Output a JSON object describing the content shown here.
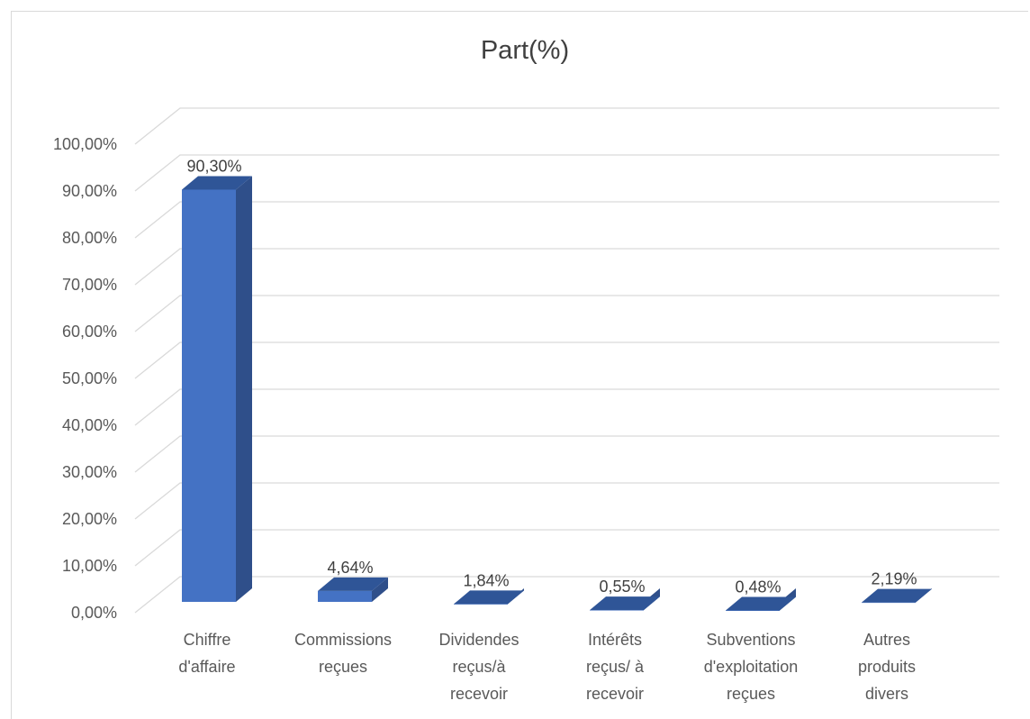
{
  "chart_data": {
    "type": "bar",
    "title": "Part(%)",
    "categories": [
      [
        "Chiffre",
        "d'affaire"
      ],
      [
        "Commissions",
        "reçues"
      ],
      [
        "Dividendes",
        "reçus/à",
        "recevoir"
      ],
      [
        "Intérêts",
        "reçus/ à",
        "recevoir"
      ],
      [
        "Subventions",
        "d'exploitation",
        "reçues"
      ],
      [
        "Autres",
        "produits",
        "divers"
      ]
    ],
    "values": [
      90.3,
      4.64,
      1.84,
      0.55,
      0.48,
      2.19
    ],
    "data_labels": [
      "90,30%",
      "4,64%",
      "1,84%",
      "0,55%",
      "0,48%",
      "2,19%"
    ],
    "ylim": [
      0,
      100
    ],
    "yticks": [
      "0,00%",
      "10,00%",
      "20,00%",
      "30,00%",
      "40,00%",
      "50,00%",
      "60,00%",
      "70,00%",
      "80,00%",
      "90,00%",
      "100,00%"
    ],
    "grid": true,
    "legend": "none",
    "style": "3d-column",
    "colors": {
      "front": "#4472c4",
      "top": "#2f5597",
      "side": "#2f4f8a"
    }
  }
}
